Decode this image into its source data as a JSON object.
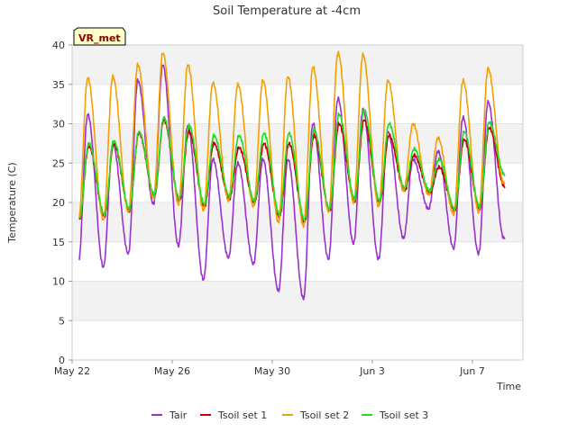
{
  "chart_data": {
    "type": "line",
    "title": "Soil Temperature at -4cm",
    "xlabel": "Time",
    "ylabel": "Temperature (C)",
    "ylim": [
      0,
      40
    ],
    "yticks": [
      0,
      5,
      10,
      15,
      20,
      25,
      30,
      35,
      40
    ],
    "xlim": [
      "May 22",
      "Jun 9"
    ],
    "xtick_labels": [
      "May 22",
      "May 26",
      "May 30",
      "Jun 3",
      "Jun 7"
    ],
    "xtick_days": [
      0,
      4,
      8,
      12,
      16
    ],
    "grid": "horizontal bands",
    "legend_position": "bottom",
    "badge": "VR_met",
    "series": [
      {
        "name": "Tair",
        "color": "#9a32cd",
        "daily_min": [
          12.2,
          11.8,
          13.5,
          19.8,
          14.5,
          10.2,
          13.0,
          12.2,
          8.8,
          7.8,
          12.8,
          14.8,
          12.8,
          15.5,
          19.2,
          14.2,
          13.5,
          15.5
        ],
        "daily_max": [
          31.2,
          27.5,
          35.5,
          37.5,
          29.8,
          25.5,
          25.0,
          25.5,
          25.5,
          30.0,
          33.2,
          31.8,
          29.0,
          25.5,
          26.5,
          30.8,
          32.8
        ]
      },
      {
        "name": "Tsoil set 1",
        "color": "#cc0000",
        "daily_min": [
          17.8,
          18.2,
          19.0,
          20.8,
          20.2,
          19.5,
          20.5,
          20.0,
          18.2,
          17.5,
          19.0,
          20.2,
          20.0,
          21.5,
          21.2,
          19.0,
          19.2,
          22.0
        ],
        "daily_max": [
          27.2,
          27.5,
          28.8,
          30.5,
          29.0,
          27.5,
          27.0,
          27.5,
          27.5,
          28.5,
          30.0,
          30.5,
          28.5,
          26.0,
          24.5,
          28.0,
          29.5
        ]
      },
      {
        "name": "Tsoil set 2",
        "color": "#f5a000",
        "daily_min": [
          17.5,
          17.8,
          18.8,
          20.5,
          19.8,
          19.0,
          20.2,
          19.5,
          17.5,
          17.0,
          18.8,
          20.0,
          19.5,
          21.5,
          21.0,
          18.5,
          18.8,
          22.5
        ],
        "daily_max": [
          35.8,
          36.0,
          37.5,
          39.0,
          37.5,
          35.2,
          35.0,
          35.5,
          36.0,
          37.2,
          39.0,
          38.8,
          35.5,
          30.0,
          28.2,
          35.5,
          37.0
        ]
      },
      {
        "name": "Tsoil set 3",
        "color": "#22dd22",
        "daily_min": [
          18.0,
          18.5,
          19.2,
          21.0,
          20.5,
          19.8,
          20.8,
          20.2,
          18.5,
          17.8,
          19.2,
          20.5,
          20.2,
          21.8,
          21.5,
          19.2,
          19.5,
          23.5
        ],
        "daily_max": [
          27.5,
          27.8,
          29.0,
          30.8,
          29.8,
          28.5,
          28.5,
          28.8,
          28.8,
          29.2,
          31.2,
          31.8,
          30.0,
          26.8,
          25.5,
          29.0,
          30.2
        ]
      }
    ]
  }
}
